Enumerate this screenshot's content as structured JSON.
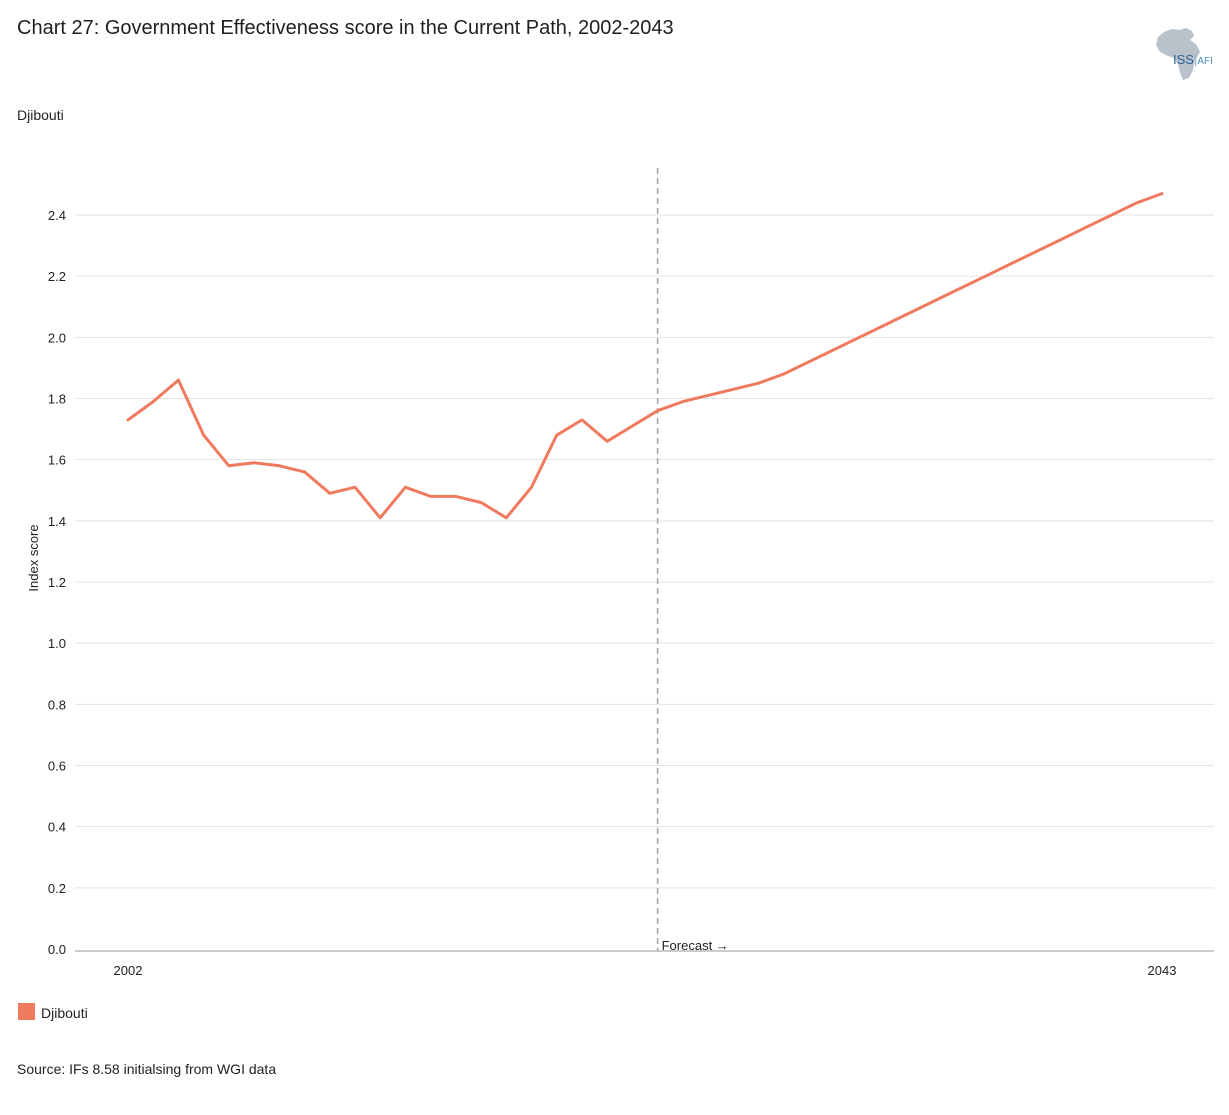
{
  "header": {
    "title": "Chart 27: Government Effectiveness score in the Current Path, 2002-2043",
    "subtitle": "Djibouti"
  },
  "logo": {
    "name": "ISS",
    "suffix": "AFI",
    "sep": "|"
  },
  "legend": {
    "label": "Djibouti"
  },
  "footer": {
    "source": "Source: IFs 8.58 initialsing from WGI data"
  },
  "colors": {
    "series": "#f07a5e",
    "grid": "#e3e3e3",
    "axis": "#9a9a9a",
    "forecast_line": "#a8a8a8",
    "logo_map": "#b9c1cb",
    "logo_text": "#2a6496"
  },
  "chart_data": {
    "type": "line",
    "title": "Chart 27: Government Effectiveness score in the Current Path, 2002-2043",
    "xlabel": "",
    "ylabel": "Index score",
    "xlim": [
      2002,
      2043
    ],
    "ylim": [
      0,
      2.4
    ],
    "y_ticks": [
      0.0,
      0.2,
      0.4,
      0.6,
      0.8,
      1.0,
      1.2,
      1.4,
      1.6,
      1.8,
      2.0,
      2.2,
      2.4
    ],
    "y_tick_labels": [
      "0.0",
      "0.2",
      "0.4",
      "0.6",
      "0.8",
      "1.0",
      "1.2",
      "1.4",
      "1.6",
      "1.8",
      "2.0",
      "2.2",
      "2.4"
    ],
    "x_tick_labels": [
      "2002",
      "2043"
    ],
    "grid": true,
    "legend_position": "bottom-left",
    "forecast": {
      "start_year": 2023,
      "label": "Forecast →"
    },
    "series": [
      {
        "name": "Djibouti",
        "color": "#f07a5e",
        "x": [
          2002,
          2003,
          2004,
          2005,
          2006,
          2007,
          2008,
          2009,
          2010,
          2011,
          2012,
          2013,
          2014,
          2015,
          2016,
          2017,
          2018,
          2019,
          2020,
          2021,
          2022,
          2023,
          2024,
          2025,
          2026,
          2027,
          2028,
          2029,
          2030,
          2031,
          2032,
          2033,
          2034,
          2035,
          2036,
          2037,
          2038,
          2039,
          2040,
          2041,
          2042,
          2043
        ],
        "y": [
          1.73,
          1.79,
          1.86,
          1.68,
          1.58,
          1.59,
          1.58,
          1.56,
          1.49,
          1.51,
          1.41,
          1.51,
          1.48,
          1.48,
          1.46,
          1.41,
          1.51,
          1.68,
          1.73,
          1.66,
          1.71,
          1.76,
          1.79,
          1.81,
          1.83,
          1.85,
          1.88,
          1.92,
          1.96,
          2.0,
          2.04,
          2.08,
          2.12,
          2.16,
          2.2,
          2.24,
          2.28,
          2.32,
          2.36,
          2.4,
          2.44,
          2.47
        ]
      }
    ]
  }
}
